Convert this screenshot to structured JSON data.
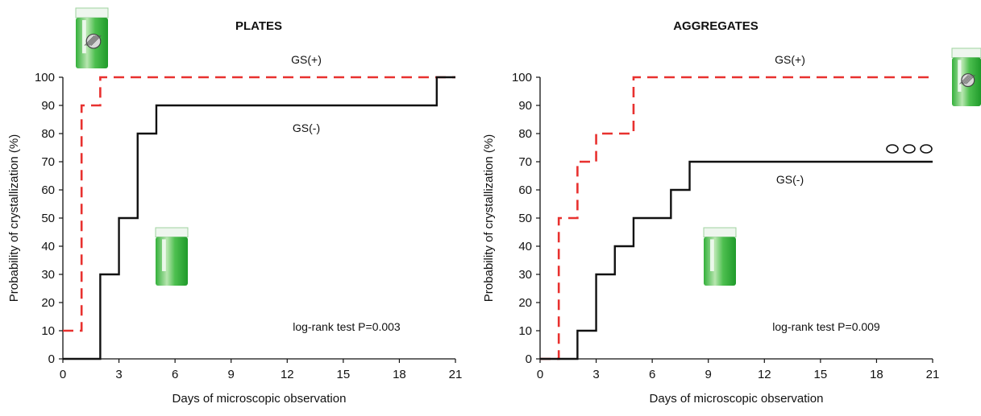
{
  "chart_data": [
    {
      "type": "line",
      "subtype": "step (Kaplan-Meier cumulative)",
      "title": "PLATES",
      "xlabel": "Days of microscopic observation",
      "ylabel": "Probability of crystallization (%)",
      "xlim": [
        0,
        21
      ],
      "ylim": [
        0,
        100
      ],
      "xticks": [
        0,
        3,
        6,
        9,
        12,
        15,
        18,
        21
      ],
      "yticks": [
        0,
        10,
        20,
        30,
        40,
        50,
        60,
        70,
        80,
        90,
        100
      ],
      "grid": false,
      "series": [
        {
          "name": "GS(+)",
          "color": "#e8312f",
          "style": "dashed",
          "x": [
            0,
            1,
            2,
            21
          ],
          "y": [
            10,
            90,
            100,
            100
          ]
        },
        {
          "name": "GS(-)",
          "color": "#111111",
          "style": "solid",
          "x": [
            0,
            2,
            3,
            4,
            5,
            20,
            21
          ],
          "y": [
            0,
            30,
            50,
            80,
            90,
            100,
            100
          ]
        }
      ],
      "annotations": [
        "log-rank test P=0.003"
      ],
      "icons": [
        "crystallization-tube-with-crystal-icon",
        "crystallization-tube-icon"
      ]
    },
    {
      "type": "line",
      "subtype": "step (Kaplan-Meier cumulative)",
      "title": "AGGREGATES",
      "xlabel": "Days of microscopic observation",
      "ylabel": "Probability of crystallization (%)",
      "xlim": [
        0,
        21
      ],
      "ylim": [
        0,
        100
      ],
      "xticks": [
        0,
        3,
        6,
        9,
        12,
        15,
        18,
        21
      ],
      "yticks": [
        0,
        10,
        20,
        30,
        40,
        50,
        60,
        70,
        80,
        90,
        100
      ],
      "grid": false,
      "series": [
        {
          "name": "GS(+)",
          "color": "#e8312f",
          "style": "dashed",
          "x": [
            0,
            1,
            2,
            3,
            5,
            21
          ],
          "y": [
            0,
            50,
            70,
            80,
            100,
            100
          ]
        },
        {
          "name": "GS(-)",
          "color": "#111111",
          "style": "solid",
          "x": [
            0,
            2,
            3,
            4,
            5,
            7,
            8,
            21
          ],
          "y": [
            0,
            10,
            30,
            40,
            50,
            60,
            70,
            70
          ]
        }
      ],
      "annotations": [
        "log-rank test P=0.009"
      ],
      "icons": [
        "crystallization-tube-with-crystal-icon",
        "crystallization-tube-icon",
        "censored-circles-icon"
      ]
    }
  ]
}
